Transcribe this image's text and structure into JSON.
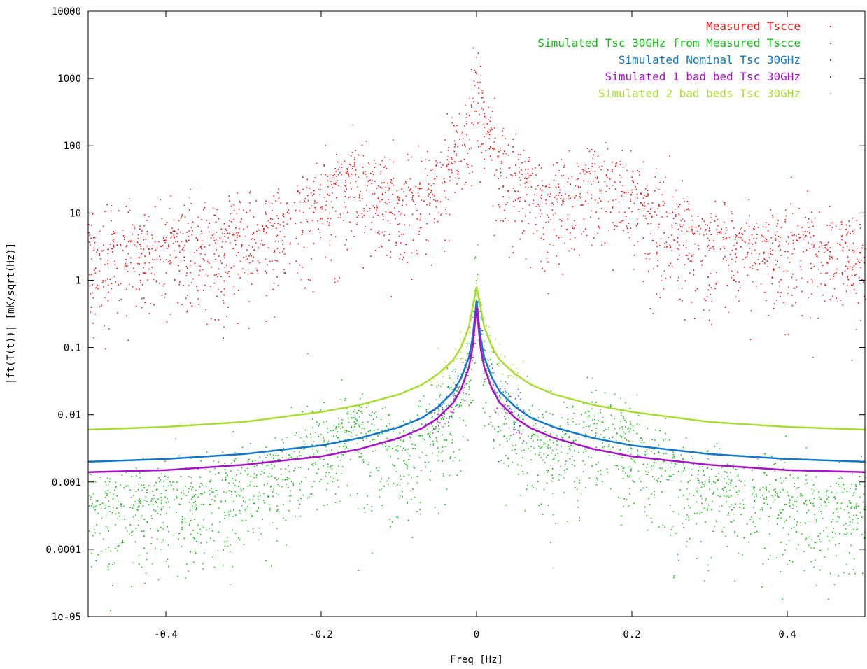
{
  "chart_data": {
    "type": "scatter",
    "title": "",
    "xlabel": "Freq [Hz]",
    "ylabel": "|ft(T(t))| [mK/sqrt(Hz)]",
    "xlim": [
      -0.5,
      0.5
    ],
    "ylim": [
      1e-05,
      10000
    ],
    "yscale": "log",
    "grid": false,
    "legend_position": "top-right",
    "xticks": [
      {
        "value": -0.4,
        "label": "-0.4"
      },
      {
        "value": -0.2,
        "label": "-0.2"
      },
      {
        "value": 0,
        "label": "0"
      },
      {
        "value": 0.2,
        "label": "0.2"
      },
      {
        "value": 0.4,
        "label": "0.4"
      }
    ],
    "yticks": [
      {
        "value": 1e-05,
        "label": "1e-05"
      },
      {
        "value": 0.0001,
        "label": "0.0001"
      },
      {
        "value": 0.001,
        "label": "0.001"
      },
      {
        "value": 0.01,
        "label": "0.01"
      },
      {
        "value": 0.1,
        "label": "0.1"
      },
      {
        "value": 1,
        "label": "1"
      },
      {
        "value": 10,
        "label": "10"
      },
      {
        "value": 100,
        "label": "100"
      },
      {
        "value": 1000,
        "label": "1000"
      },
      {
        "value": 10000,
        "label": "10000"
      }
    ],
    "series": [
      {
        "name": "Measured Tscce",
        "color": "#ee1111",
        "style": "noisy",
        "x": [
          -0.5,
          -0.45,
          -0.4,
          -0.35,
          -0.3,
          -0.25,
          -0.2,
          -0.17,
          -0.15,
          -0.12,
          -0.1,
          -0.07,
          -0.05,
          -0.03,
          -0.02,
          -0.01,
          -0.005,
          0,
          0.005,
          0.01,
          0.02,
          0.03,
          0.05,
          0.07,
          0.1,
          0.12,
          0.15,
          0.17,
          0.2,
          0.25,
          0.3,
          0.35,
          0.4,
          0.45,
          0.5
        ],
        "y": [
          2.5,
          2.8,
          3.0,
          3.5,
          4.0,
          6.0,
          15,
          28,
          35,
          18,
          12,
          22,
          35,
          60,
          90,
          200,
          400,
          900,
          400,
          200,
          90,
          60,
          35,
          22,
          12,
          18,
          35,
          28,
          15,
          6.0,
          4.0,
          3.5,
          3.0,
          2.8,
          2.5
        ]
      },
      {
        "name": "Simulated Tsc 30GHz from Measured Tscce",
        "color": "#11bb11",
        "style": "noisy",
        "x": [
          -0.5,
          -0.45,
          -0.4,
          -0.35,
          -0.3,
          -0.25,
          -0.2,
          -0.17,
          -0.15,
          -0.12,
          -0.1,
          -0.07,
          -0.05,
          -0.03,
          -0.02,
          -0.01,
          -0.005,
          0,
          0.005,
          0.01,
          0.02,
          0.03,
          0.05,
          0.07,
          0.1,
          0.12,
          0.15,
          0.17,
          0.2,
          0.25,
          0.3,
          0.35,
          0.4,
          0.45,
          0.5
        ],
        "y": [
          0.0004,
          0.00042,
          0.00045,
          0.0006,
          0.0008,
          0.0015,
          0.003,
          0.0055,
          0.006,
          0.0035,
          0.0025,
          0.004,
          0.006,
          0.01,
          0.02,
          0.05,
          0.15,
          1.5,
          0.15,
          0.05,
          0.02,
          0.01,
          0.006,
          0.004,
          0.0025,
          0.0035,
          0.006,
          0.0055,
          0.003,
          0.0015,
          0.0008,
          0.0006,
          0.00045,
          0.00042,
          0.0004
        ]
      },
      {
        "name": "Simulated Nominal Tsc 30GHz",
        "color": "#1177cc",
        "style": "line",
        "x": [
          -0.5,
          -0.4,
          -0.3,
          -0.2,
          -0.15,
          -0.1,
          -0.07,
          -0.05,
          -0.03,
          -0.02,
          -0.01,
          -0.005,
          0,
          0.005,
          0.01,
          0.02,
          0.03,
          0.05,
          0.07,
          0.1,
          0.15,
          0.2,
          0.3,
          0.4,
          0.5
        ],
        "y": [
          0.002,
          0.0022,
          0.0026,
          0.0035,
          0.0045,
          0.0065,
          0.009,
          0.013,
          0.022,
          0.035,
          0.07,
          0.14,
          0.5,
          0.14,
          0.07,
          0.035,
          0.022,
          0.013,
          0.009,
          0.0065,
          0.0045,
          0.0035,
          0.0026,
          0.0022,
          0.002
        ]
      },
      {
        "name": "Simulated 1 bad bed Tsc 30GHz",
        "color": "#aa11cc",
        "style": "line",
        "x": [
          -0.5,
          -0.4,
          -0.3,
          -0.2,
          -0.15,
          -0.1,
          -0.07,
          -0.05,
          -0.03,
          -0.02,
          -0.01,
          -0.005,
          0,
          0.005,
          0.01,
          0.02,
          0.03,
          0.05,
          0.07,
          0.1,
          0.15,
          0.2,
          0.3,
          0.4,
          0.5
        ],
        "y": [
          0.0014,
          0.0015,
          0.0018,
          0.0024,
          0.0031,
          0.0045,
          0.0063,
          0.0089,
          0.015,
          0.024,
          0.05,
          0.1,
          0.4,
          0.1,
          0.05,
          0.024,
          0.015,
          0.0089,
          0.0063,
          0.0045,
          0.0031,
          0.0024,
          0.0018,
          0.0015,
          0.0014
        ]
      },
      {
        "name": "Simulated 2 bad beds Tsc 30GHz",
        "color": "#aadd33",
        "style": "line",
        "x": [
          -0.5,
          -0.4,
          -0.3,
          -0.2,
          -0.15,
          -0.1,
          -0.07,
          -0.05,
          -0.03,
          -0.02,
          -0.01,
          -0.005,
          0,
          0.005,
          0.01,
          0.02,
          0.03,
          0.05,
          0.07,
          0.1,
          0.15,
          0.2,
          0.3,
          0.4,
          0.5
        ],
        "y": [
          0.006,
          0.0066,
          0.0078,
          0.011,
          0.014,
          0.02,
          0.028,
          0.04,
          0.065,
          0.1,
          0.2,
          0.4,
          0.8,
          0.4,
          0.2,
          0.1,
          0.065,
          0.04,
          0.028,
          0.02,
          0.014,
          0.011,
          0.0078,
          0.0066,
          0.006
        ]
      }
    ]
  }
}
